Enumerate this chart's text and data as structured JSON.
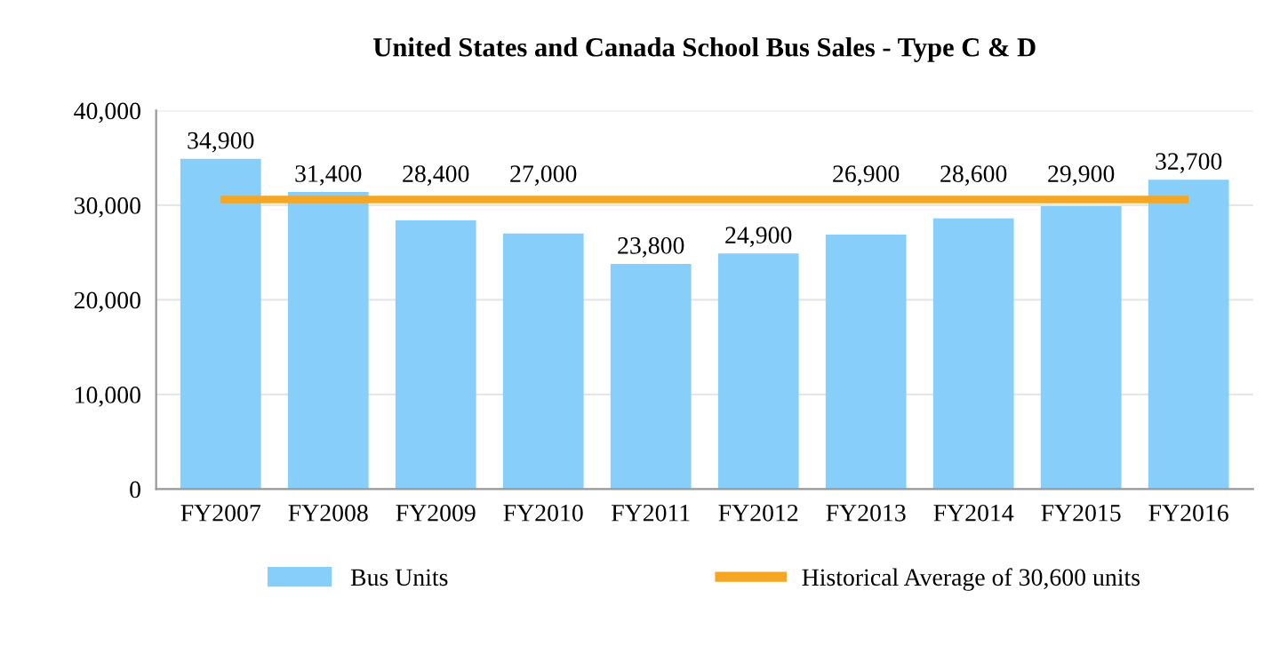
{
  "chart_data": {
    "type": "bar",
    "title": "United States and Canada School Bus Sales - Type C & D",
    "categories": [
      "FY2007",
      "FY2008",
      "FY2009",
      "FY2010",
      "FY2011",
      "FY2012",
      "FY2013",
      "FY2014",
      "FY2015",
      "FY2016"
    ],
    "series": [
      {
        "name": "Bus Units",
        "color": "#87cefa",
        "values": [
          34900,
          31400,
          28400,
          27000,
          23800,
          24900,
          26900,
          28600,
          29900,
          32700
        ],
        "value_labels": [
          "34,900",
          "31,400",
          "28,400",
          "27,000",
          "23,800",
          "24,900",
          "26,900",
          "28,600",
          "29,900",
          "32,700"
        ]
      }
    ],
    "ref_lines": [
      {
        "axis": "y",
        "value": 30600,
        "label": "Historical Average of 30,600 units",
        "color": "#f5a623"
      }
    ],
    "ylim": [
      0,
      40000
    ],
    "yticks": [
      0,
      {
        "value": 10000,
        "label": "10,000"
      },
      {
        "value": 20000,
        "label": "20,000"
      },
      {
        "value": 30000,
        "label": "30,000"
      },
      {
        "value": 40000,
        "label": "40,000"
      }
    ],
    "grid": "y",
    "legend": "bottom"
  }
}
